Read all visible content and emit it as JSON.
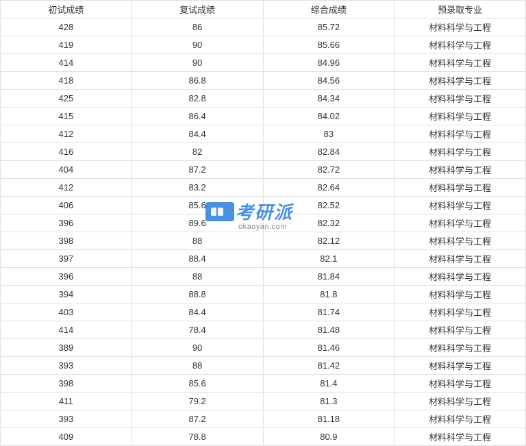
{
  "table": {
    "columns": [
      "初试成绩",
      "复试成绩",
      "综合成绩",
      "预录取专业"
    ],
    "rows": [
      [
        "428",
        "86",
        "85.72",
        "材料科学与工程"
      ],
      [
        "419",
        "90",
        "85.66",
        "材料科学与工程"
      ],
      [
        "414",
        "90",
        "84.96",
        "材料科学与工程"
      ],
      [
        "418",
        "86.8",
        "84.56",
        "材料科学与工程"
      ],
      [
        "425",
        "82.8",
        "84.34",
        "材料科学与工程"
      ],
      [
        "415",
        "86.4",
        "84.02",
        "材料科学与工程"
      ],
      [
        "412",
        "84.4",
        "83",
        "材料科学与工程"
      ],
      [
        "416",
        "82",
        "82.84",
        "材料科学与工程"
      ],
      [
        "404",
        "87.2",
        "82.72",
        "材料科学与工程"
      ],
      [
        "412",
        "83.2",
        "82.64",
        "材料科学与工程"
      ],
      [
        "406",
        "85.6",
        "82.52",
        "材料科学与工程"
      ],
      [
        "396",
        "89.6",
        "82.32",
        "材料科学与工程"
      ],
      [
        "398",
        "88",
        "82.12",
        "材料科学与工程"
      ],
      [
        "397",
        "88.4",
        "82.1",
        "材料科学与工程"
      ],
      [
        "396",
        "88",
        "81.84",
        "材料科学与工程"
      ],
      [
        "394",
        "88.8",
        "81.8",
        "材料科学与工程"
      ],
      [
        "403",
        "84.4",
        "81.74",
        "材料科学与工程"
      ],
      [
        "414",
        "78.4",
        "81.48",
        "材料科学与工程"
      ],
      [
        "389",
        "90",
        "81.46",
        "材料科学与工程"
      ],
      [
        "393",
        "88",
        "81.42",
        "材料科学与工程"
      ],
      [
        "398",
        "85.6",
        "81.4",
        "材料科学与工程"
      ],
      [
        "411",
        "79.2",
        "81.3",
        "材料科学与工程"
      ],
      [
        "393",
        "87.2",
        "81.18",
        "材料科学与工程"
      ],
      [
        "409",
        "78.8",
        "80.9",
        "材料科学与工程"
      ]
    ],
    "border_color": "#e0e0e0",
    "text_color": "#333333",
    "background_color": "#ffffff",
    "font_size": 13
  },
  "watermark": {
    "icon_text": "logo",
    "text_cn": "考研派",
    "text_en": "okaoyan.com",
    "icon_color": "#4a90e2",
    "text_color": "#4a90e2",
    "subtext_color": "#888888"
  }
}
